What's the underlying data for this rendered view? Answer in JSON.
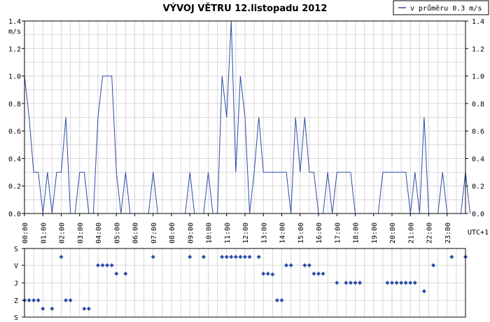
{
  "chart_data": [
    {
      "type": "line",
      "title": "VÝVOJ VĚTRU  12.listopadu 2012",
      "ylabel": "m/s",
      "xlabel": "UTC+1",
      "ylim": [
        0,
        1.4
      ],
      "yticks": [
        "0.0",
        "0.2",
        "0.4",
        "0.6",
        "0.8",
        "1.0",
        "1.2",
        "1.4"
      ],
      "xticks": [
        "00:00",
        "01:00",
        "02:00",
        "03:00",
        "04:00",
        "05:00",
        "06:00",
        "07:00",
        "08:00",
        "09:00",
        "10:00",
        "11:00",
        "12:00",
        "13:00",
        "14:00",
        "15:00",
        "16:00",
        "17:00",
        "18:00",
        "19:00",
        "20:00",
        "21:00",
        "22:00",
        "23:00"
      ],
      "grid": true,
      "legend": {
        "position": "top-right",
        "text": "v průměru 0.3 m/s"
      },
      "colors": {
        "line": "#2b4da8",
        "grid": "#d0d0d0"
      },
      "series": [
        {
          "name": "v průměru 0.3 m/s",
          "points": [
            [
              0.0,
              1.0
            ],
            [
              0.25,
              0.7
            ],
            [
              0.5,
              0.3
            ],
            [
              0.75,
              0.3
            ],
            [
              1.0,
              0.0
            ],
            [
              1.25,
              0.3
            ],
            [
              1.5,
              0.0
            ],
            [
              1.75,
              0.3
            ],
            [
              2.0,
              0.3
            ],
            [
              2.25,
              0.7
            ],
            [
              2.5,
              0.0
            ],
            [
              2.75,
              0.0
            ],
            [
              3.0,
              0.3
            ],
            [
              3.25,
              0.3
            ],
            [
              3.5,
              0.0
            ],
            [
              3.75,
              0.0
            ],
            [
              4.0,
              0.7
            ],
            [
              4.25,
              1.0
            ],
            [
              4.5,
              1.0
            ],
            [
              4.75,
              1.0
            ],
            [
              5.0,
              0.3
            ],
            [
              5.25,
              0.0
            ],
            [
              5.5,
              0.3
            ],
            [
              5.75,
              0.0
            ],
            [
              6.0,
              0.0
            ],
            [
              6.25,
              0.0
            ],
            [
              6.5,
              0.0
            ],
            [
              6.75,
              0.0
            ],
            [
              7.0,
              0.3
            ],
            [
              7.25,
              0.0
            ],
            [
              7.5,
              0.0
            ],
            [
              7.75,
              0.0
            ],
            [
              8.0,
              0.0
            ],
            [
              8.25,
              0.0
            ],
            [
              8.5,
              0.0
            ],
            [
              8.75,
              0.0
            ],
            [
              9.0,
              0.3
            ],
            [
              9.25,
              0.0
            ],
            [
              9.5,
              0.0
            ],
            [
              9.75,
              0.0
            ],
            [
              10.0,
              0.3
            ],
            [
              10.25,
              0.0
            ],
            [
              10.5,
              0.0
            ],
            [
              10.75,
              1.0
            ],
            [
              11.0,
              0.7
            ],
            [
              11.25,
              1.4
            ],
            [
              11.5,
              0.3
            ],
            [
              11.75,
              1.0
            ],
            [
              12.0,
              0.7
            ],
            [
              12.25,
              0.0
            ],
            [
              12.5,
              0.3
            ],
            [
              12.75,
              0.7
            ],
            [
              13.0,
              0.3
            ],
            [
              13.25,
              0.3
            ],
            [
              13.5,
              0.3
            ],
            [
              13.75,
              0.3
            ],
            [
              14.0,
              0.3
            ],
            [
              14.25,
              0.3
            ],
            [
              14.5,
              0.0
            ],
            [
              14.75,
              0.7
            ],
            [
              15.0,
              0.3
            ],
            [
              15.25,
              0.7
            ],
            [
              15.5,
              0.3
            ],
            [
              15.75,
              0.3
            ],
            [
              16.0,
              0.0
            ],
            [
              16.25,
              0.0
            ],
            [
              16.5,
              0.3
            ],
            [
              16.75,
              0.0
            ],
            [
              17.0,
              0.3
            ],
            [
              17.25,
              0.3
            ],
            [
              17.5,
              0.3
            ],
            [
              17.75,
              0.3
            ],
            [
              18.0,
              0.0
            ],
            [
              18.25,
              0.0
            ],
            [
              18.5,
              0.0
            ],
            [
              18.75,
              0.0
            ],
            [
              19.0,
              0.0
            ],
            [
              19.25,
              0.0
            ],
            [
              19.5,
              0.3
            ],
            [
              19.75,
              0.3
            ],
            [
              20.0,
              0.3
            ],
            [
              20.25,
              0.3
            ],
            [
              20.5,
              0.3
            ],
            [
              20.75,
              0.3
            ],
            [
              21.0,
              0.0
            ],
            [
              21.25,
              0.3
            ],
            [
              21.5,
              0.0
            ],
            [
              21.75,
              0.7
            ],
            [
              22.0,
              0.0
            ],
            [
              22.25,
              0.0
            ],
            [
              22.5,
              0.0
            ],
            [
              22.75,
              0.3
            ],
            [
              23.0,
              0.0
            ],
            [
              23.25,
              0.0
            ],
            [
              23.5,
              0.0
            ],
            [
              23.75,
              0.0
            ],
            [
              24.0,
              0.3
            ],
            [
              24.25,
              0.0
            ]
          ]
        }
      ]
    },
    {
      "type": "scatter",
      "yticks": [
        "S",
        "V",
        "J",
        "Z",
        "S"
      ],
      "xlim_hours": [
        0,
        24.25
      ],
      "colors": {
        "marker": "#2b4da8",
        "grid": "#d0d0d0"
      },
      "points": [
        [
          0.0,
          "Z"
        ],
        [
          0.25,
          "Z"
        ],
        [
          0.5,
          "Z"
        ],
        [
          0.75,
          "Z"
        ],
        [
          1.0,
          "Z-"
        ],
        [
          1.5,
          "Z-"
        ],
        [
          2.0,
          "V+"
        ],
        [
          2.25,
          "Z"
        ],
        [
          2.5,
          "Z"
        ],
        [
          3.25,
          "Z-"
        ],
        [
          3.5,
          "Z-"
        ],
        [
          4.0,
          "V"
        ],
        [
          4.25,
          "V"
        ],
        [
          4.5,
          "V"
        ],
        [
          4.75,
          "V"
        ],
        [
          5.0,
          "V-"
        ],
        [
          5.5,
          "V-"
        ],
        [
          7.0,
          "V+"
        ],
        [
          9.0,
          "V+"
        ],
        [
          9.75,
          "V+"
        ],
        [
          10.75,
          "V+"
        ],
        [
          11.0,
          "V+"
        ],
        [
          11.25,
          "V+"
        ],
        [
          11.5,
          "V+"
        ],
        [
          11.75,
          "V+"
        ],
        [
          12.0,
          "V+"
        ],
        [
          12.25,
          "V+"
        ],
        [
          12.75,
          "V+"
        ],
        [
          13.0,
          "V-"
        ],
        [
          13.25,
          "V-"
        ],
        [
          13.5,
          "J+"
        ],
        [
          13.75,
          "Z"
        ],
        [
          14.0,
          "Z"
        ],
        [
          14.25,
          "V"
        ],
        [
          14.5,
          "V"
        ],
        [
          15.25,
          "V"
        ],
        [
          15.5,
          "V"
        ],
        [
          15.75,
          "V-"
        ],
        [
          16.0,
          "V-"
        ],
        [
          16.25,
          "V-"
        ],
        [
          17.0,
          "J"
        ],
        [
          17.5,
          "J"
        ],
        [
          17.75,
          "J"
        ],
        [
          18.0,
          "J"
        ],
        [
          18.25,
          "J"
        ],
        [
          19.75,
          "J"
        ],
        [
          20.0,
          "J"
        ],
        [
          20.25,
          "J"
        ],
        [
          20.5,
          "J"
        ],
        [
          20.75,
          "J"
        ],
        [
          21.0,
          "J"
        ],
        [
          21.25,
          "J"
        ],
        [
          21.75,
          "J-"
        ],
        [
          22.25,
          "V"
        ],
        [
          23.25,
          "V+"
        ],
        [
          24.0,
          "V+"
        ]
      ]
    }
  ]
}
